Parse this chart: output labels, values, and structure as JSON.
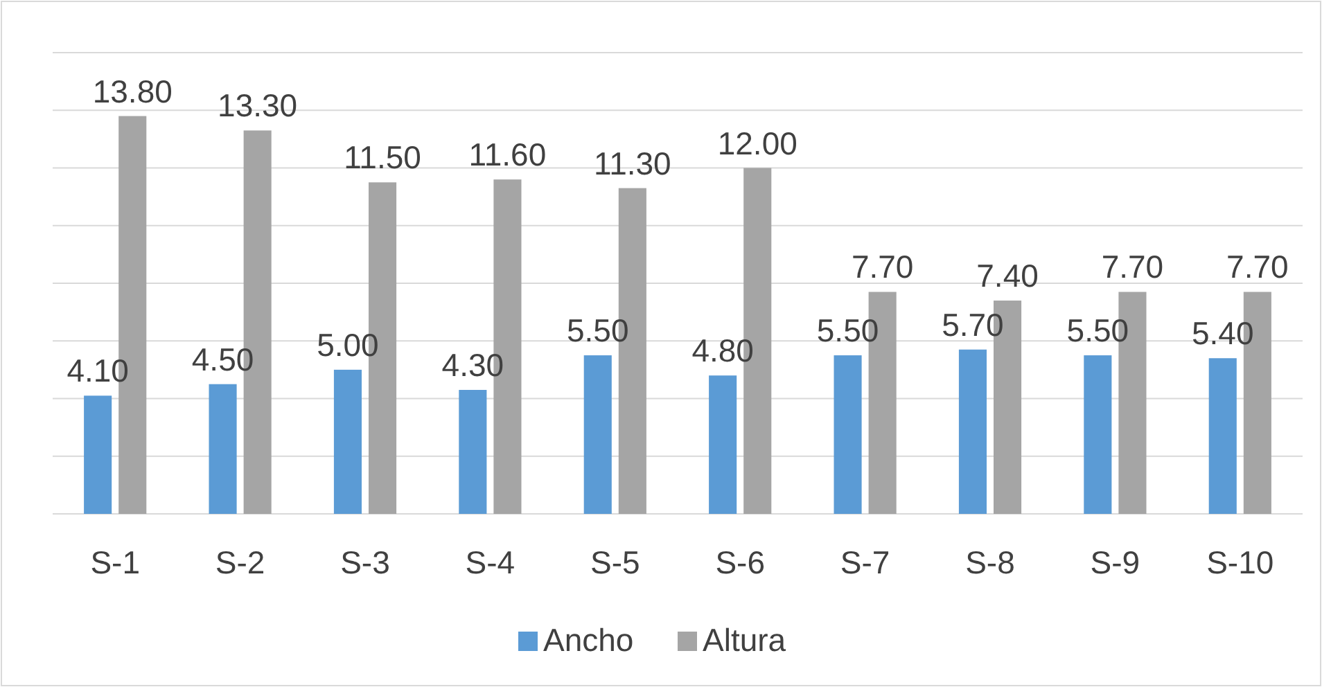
{
  "chart_data": {
    "type": "bar",
    "categories": [
      "S-1",
      "S-2",
      "S-3",
      "S-4",
      "S-5",
      "S-6",
      "S-7",
      "S-8",
      "S-9",
      "S-10"
    ],
    "series": [
      {
        "name": "Ancho",
        "color": "#5b9bd5",
        "values": [
          4.1,
          4.5,
          5.0,
          4.3,
          5.5,
          4.8,
          5.5,
          5.7,
          5.5,
          5.4
        ],
        "value_labels": [
          "4.10",
          "4.50",
          "5.00",
          "4.30",
          "5.50",
          "4.80",
          "5.50",
          "5.70",
          "5.50",
          "5.40"
        ]
      },
      {
        "name": "Altura",
        "color": "#a5a5a5",
        "values": [
          13.8,
          13.3,
          11.5,
          11.6,
          11.3,
          12.0,
          7.7,
          7.4,
          7.7,
          7.7
        ],
        "value_labels": [
          "13.80",
          "13.30",
          "11.50",
          "11.60",
          "11.30",
          "12.00",
          "7.70",
          "7.40",
          "7.70",
          "7.70"
        ]
      }
    ],
    "ylim": [
      0,
      16
    ],
    "yticks": [
      {
        "value": 0,
        "label": null
      },
      {
        "value": 2,
        "label": null
      },
      {
        "value": 4,
        "label": null
      },
      {
        "value": 6,
        "label": null
      },
      {
        "value": 8,
        "label": null
      },
      {
        "value": 10,
        "label": null
      },
      {
        "value": 12,
        "label": null
      },
      {
        "value": 14,
        "label": null
      },
      {
        "value": 16,
        "label": null
      }
    ],
    "grid": "y",
    "tick_labels": "x",
    "legend": "bottom"
  }
}
